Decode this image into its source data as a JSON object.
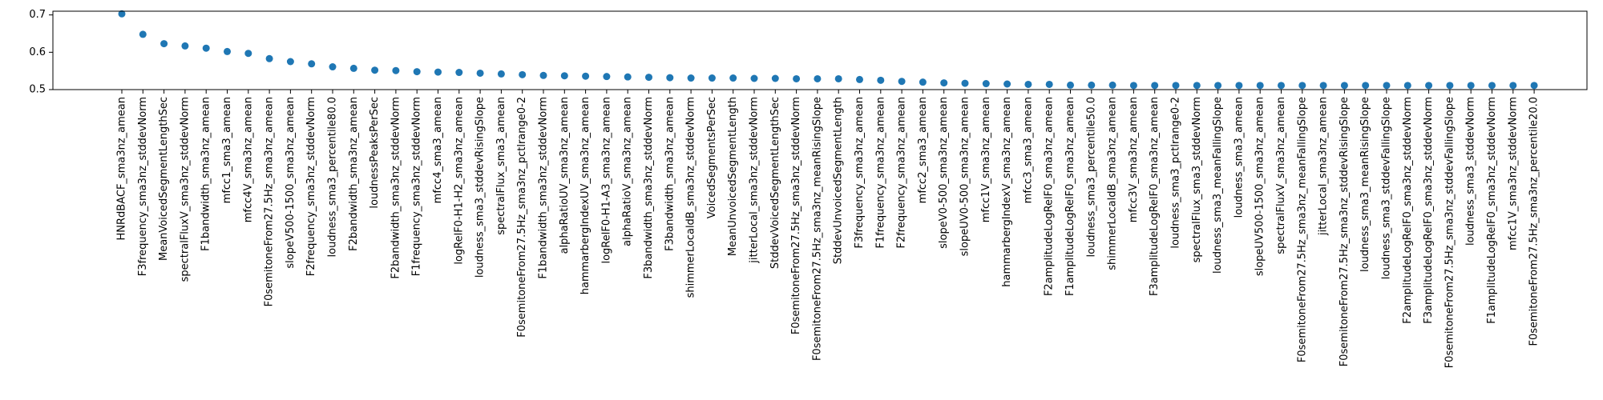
{
  "chart_data": {
    "type": "scatter",
    "title": "",
    "xlabel": "",
    "ylabel": "",
    "ylim": [
      0.5,
      0.71
    ],
    "y_ticks": [
      0.5,
      0.6,
      0.7
    ],
    "y_tick_labels": [
      "0.5",
      "0.6",
      "0.7"
    ],
    "grid": false,
    "marker_color": "#1f77b4",
    "categories": [
      "HNRdBACF_sma3nz_amean",
      "F3frequency_sma3nz_stddevNorm",
      "MeanVoicedSegmentLengthSec",
      "spectralFluxV_sma3nz_stddevNorm",
      "F1bandwidth_sma3nz_amean",
      "mfcc1_sma3_amean",
      "mfcc4V_sma3nz_amean",
      "F0semitoneFrom27.5Hz_sma3nz_amean",
      "slopeV500-1500_sma3nz_amean",
      "F2frequency_sma3nz_stddevNorm",
      "loudness_sma3_percentile80.0",
      "F2bandwidth_sma3nz_amean",
      "loudnessPeaksPerSec",
      "F2bandwidth_sma3nz_stddevNorm",
      "F1frequency_sma3nz_stddevNorm",
      "mfcc4_sma3_amean",
      "logRelF0-H1-H2_sma3nz_amean",
      "loudness_sma3_stddevRisingSlope",
      "spectralFlux_sma3_amean",
      "F0semitoneFrom27.5Hz_sma3nz_pctlrange0-2",
      "F1bandwidth_sma3nz_stddevNorm",
      "alphaRatioUV_sma3nz_amean",
      "hammarbergIndexUV_sma3nz_amean",
      "logRelF0-H1-A3_sma3nz_amean",
      "alphaRatioV_sma3nz_amean",
      "F3bandwidth_sma3nz_stddevNorm",
      "F3bandwidth_sma3nz_amean",
      "shimmerLocaldB_sma3nz_stddevNorm",
      "VoicedSegmentsPerSec",
      "MeanUnvoicedSegmentLength",
      "jitterLocal_sma3nz_stddevNorm",
      "StddevVoicedSegmentLengthSec",
      "F0semitoneFrom27.5Hz_sma3nz_stddevNorm",
      "F0semitoneFrom27.5Hz_sma3nz_meanRisingSlope",
      "StddevUnvoicedSegmentLength",
      "F3frequency_sma3nz_amean",
      "F1frequency_sma3nz_amean",
      "F2frequency_sma3nz_amean",
      "mfcc2_sma3_amean",
      "slopeV0-500_sma3nz_amean",
      "slopeUV0-500_sma3nz_amean",
      "mfcc1V_sma3nz_amean",
      "hammarbergIndexV_sma3nz_amean",
      "mfcc3_sma3_amean",
      "F2amplitudeLogRelF0_sma3nz_amean",
      "F1amplitudeLogRelF0_sma3nz_amean",
      "loudness_sma3_percentile50.0",
      "shimmerLocaldB_sma3nz_amean",
      "mfcc3V_sma3nz_amean",
      "F3amplitudeLogRelF0_sma3nz_amean",
      "loudness_sma3_pctlrange0-2",
      "spectralFlux_sma3_stddevNorm",
      "loudness_sma3_meanFallingSlope",
      "loudness_sma3_amean",
      "slopeUV500-1500_sma3nz_amean",
      "spectralFluxV_sma3nz_amean",
      "F0semitoneFrom27.5Hz_sma3nz_meanFallingSlope",
      "jitterLocal_sma3nz_amean",
      "F0semitoneFrom27.5Hz_sma3nz_stddevRisingSlope",
      "loudness_sma3_meanRisingSlope",
      "loudness_sma3_stddevFallingSlope",
      "F2amplitudeLogRelF0_sma3nz_stddevNorm",
      "F3amplitudeLogRelF0_sma3nz_stddevNorm",
      "F0semitoneFrom27.5Hz_sma3nz_stddevFallingSlope",
      "loudness_sma3_stddevNorm",
      "F1amplitudeLogRelF0_sma3nz_stddevNorm",
      "mfcc1V_sma3nz_stddevNorm",
      "F0semitoneFrom27.5Hz_sma3nz_percentile20.0"
    ],
    "values": [
      0.703,
      0.648,
      0.623,
      0.617,
      0.611,
      0.602,
      0.597,
      0.583,
      0.575,
      0.569,
      0.561,
      0.557,
      0.552,
      0.551,
      0.548,
      0.547,
      0.546,
      0.544,
      0.542,
      0.54,
      0.538,
      0.537,
      0.536,
      0.535,
      0.534,
      0.533,
      0.532,
      0.531,
      0.531,
      0.531,
      0.53,
      0.53,
      0.529,
      0.529,
      0.529,
      0.527,
      0.525,
      0.522,
      0.52,
      0.518,
      0.517,
      0.516,
      0.515,
      0.514,
      0.514,
      0.512,
      0.512,
      0.512,
      0.511,
      0.511,
      0.511,
      0.511,
      0.511,
      0.511,
      0.511,
      0.511,
      0.511,
      0.511,
      0.511,
      0.511,
      0.511,
      0.511,
      0.511,
      0.511,
      0.511,
      0.511,
      0.511,
      0.511
    ]
  }
}
